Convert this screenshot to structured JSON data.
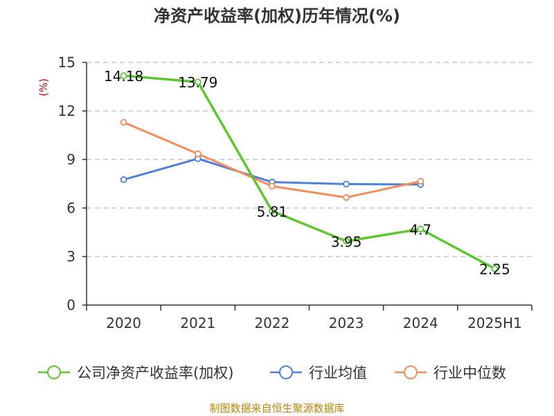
{
  "chart_data": {
    "type": "line",
    "title": "净资产收益率(加权)历年情况(%)",
    "ylabel": "(%)",
    "xlabel": "",
    "categories": [
      "2020",
      "2021",
      "2022",
      "2023",
      "2024",
      "2025H1"
    ],
    "ylim": [
      0,
      15
    ],
    "yticks": [
      0,
      3,
      6,
      9,
      12,
      15
    ],
    "grid": true,
    "legend_position": "bottom",
    "series": [
      {
        "name": "公司净资产收益率(加权)",
        "color": "#5fc72e",
        "values": [
          14.18,
          13.79,
          5.81,
          3.95,
          4.7,
          2.25
        ],
        "labels": [
          "14.18",
          "13.79",
          "5.81",
          "3.95",
          "4.7",
          "2.25"
        ]
      },
      {
        "name": "行业均值",
        "color": "#4f7fd9",
        "values": [
          7.75,
          9.05,
          7.6,
          7.48,
          7.45,
          null
        ]
      },
      {
        "name": "行业中位数",
        "color": "#f58c5a",
        "values": [
          11.3,
          9.35,
          7.35,
          6.65,
          7.65,
          null
        ]
      }
    ],
    "source": "制图数据来自恒生聚源数据库"
  }
}
